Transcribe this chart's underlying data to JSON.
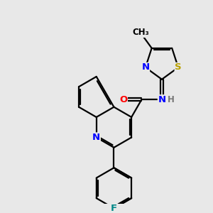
{
  "bg_color": "#e8e8e8",
  "atom_colors": {
    "C": "#000000",
    "N": "#0000ff",
    "O": "#ff0000",
    "S": "#b8a000",
    "F": "#008888",
    "H": "#777777",
    "NH": "#0000ff"
  },
  "bond_color": "#000000",
  "bond_width": 1.6,
  "font_size": 9.5,
  "title": ""
}
